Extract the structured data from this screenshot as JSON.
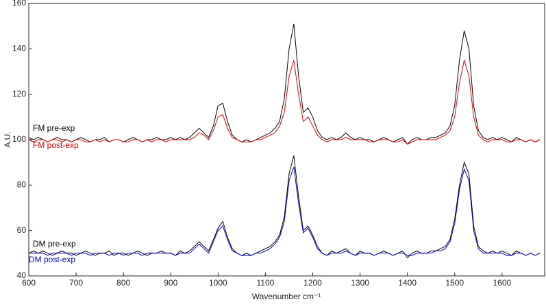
{
  "chart_data": {
    "type": "line",
    "xlabel": "Wavenumber cm⁻¹",
    "ylabel": "A.U.",
    "xlim": [
      600,
      1690
    ],
    "ylim": [
      40,
      160
    ],
    "xticks": [
      600,
      700,
      800,
      900,
      1000,
      1100,
      1200,
      1300,
      1400,
      1500,
      1600
    ],
    "yticks": [
      40,
      60,
      80,
      100,
      120,
      140,
      160
    ],
    "x": [
      600,
      610,
      620,
      630,
      640,
      650,
      660,
      670,
      680,
      690,
      700,
      710,
      720,
      730,
      740,
      750,
      760,
      770,
      780,
      790,
      800,
      810,
      820,
      830,
      840,
      850,
      860,
      870,
      880,
      890,
      900,
      910,
      920,
      930,
      940,
      950,
      960,
      970,
      980,
      990,
      1000,
      1010,
      1020,
      1030,
      1040,
      1050,
      1060,
      1070,
      1080,
      1090,
      1100,
      1110,
      1120,
      1130,
      1140,
      1150,
      1160,
      1170,
      1180,
      1190,
      1200,
      1210,
      1220,
      1230,
      1240,
      1250,
      1260,
      1270,
      1280,
      1290,
      1300,
      1310,
      1320,
      1330,
      1340,
      1350,
      1360,
      1370,
      1380,
      1390,
      1400,
      1410,
      1420,
      1430,
      1440,
      1450,
      1460,
      1470,
      1480,
      1490,
      1500,
      1510,
      1520,
      1530,
      1540,
      1550,
      1560,
      1570,
      1580,
      1590,
      1600,
      1610,
      1620,
      1630,
      1640,
      1650,
      1660,
      1670,
      1680
    ],
    "series": [
      {
        "name": "FM pre-exp",
        "color": "#000000",
        "values": [
          101,
          100,
          101,
          100,
          99,
          100,
          101,
          100,
          100,
          99,
          100,
          101,
          100,
          99,
          100,
          100,
          101,
          99,
          100,
          100,
          99,
          100,
          101,
          100,
          99,
          100,
          100,
          101,
          100,
          100,
          101,
          100,
          101,
          100,
          101,
          103,
          105,
          103,
          101,
          106,
          115,
          116,
          108,
          102,
          100,
          99,
          100,
          99,
          100,
          101,
          102,
          103,
          105,
          108,
          118,
          140,
          151,
          128,
          112,
          114,
          110,
          104,
          101,
          100,
          101,
          100,
          101,
          103,
          101,
          100,
          101,
          100,
          100,
          99,
          100,
          101,
          100,
          99,
          100,
          101,
          98,
          100,
          101,
          100,
          100,
          101,
          101,
          102,
          103,
          106,
          115,
          135,
          148,
          140,
          115,
          104,
          101,
          100,
          101,
          100,
          101,
          100,
          99,
          101,
          100,
          99,
          100,
          99,
          100
        ]
      },
      {
        "name": "FM post-exp",
        "color": "#d40000",
        "values": [
          100,
          99,
          100,
          100,
          99,
          100,
          100,
          99,
          100,
          99,
          100,
          100,
          99,
          99,
          100,
          99,
          100,
          99,
          100,
          100,
          99,
          99,
          100,
          100,
          99,
          100,
          99,
          100,
          100,
          99,
          100,
          100,
          100,
          100,
          100,
          101,
          103,
          102,
          100,
          104,
          110,
          111,
          105,
          101,
          100,
          99,
          99,
          99,
          100,
          100,
          101,
          102,
          103,
          106,
          112,
          128,
          135,
          120,
          108,
          110,
          106,
          102,
          100,
          99,
          100,
          100,
          100,
          101,
          100,
          100,
          100,
          100,
          99,
          99,
          100,
          100,
          100,
          99,
          99,
          100,
          98,
          99,
          100,
          100,
          100,
          100,
          100,
          101,
          102,
          104,
          110,
          125,
          135,
          128,
          110,
          102,
          100,
          99,
          100,
          100,
          100,
          99,
          99,
          100,
          100,
          99,
          100,
          99,
          100
        ]
      },
      {
        "name": "DM pre-exp",
        "color": "#000000",
        "values": [
          50,
          51,
          50,
          51,
          50,
          49,
          50,
          51,
          50,
          50,
          49,
          50,
          51,
          50,
          49,
          50,
          50,
          51,
          49,
          50,
          50,
          49,
          50,
          51,
          50,
          49,
          50,
          50,
          51,
          50,
          50,
          49,
          51,
          50,
          51,
          53,
          55,
          53,
          51,
          56,
          61,
          64,
          57,
          52,
          50,
          49,
          50,
          49,
          50,
          51,
          52,
          53,
          55,
          58,
          66,
          85,
          93,
          75,
          60,
          62,
          58,
          53,
          50,
          49,
          51,
          50,
          51,
          52,
          50,
          49,
          51,
          50,
          50,
          49,
          50,
          51,
          50,
          49,
          50,
          51,
          48,
          50,
          51,
          50,
          50,
          51,
          51,
          52,
          53,
          56,
          65,
          80,
          90,
          85,
          62,
          53,
          51,
          50,
          51,
          50,
          51,
          50,
          49,
          51,
          50,
          49,
          50,
          49,
          50
        ]
      },
      {
        "name": "DM post-exp",
        "color": "#0000c8",
        "values": [
          50,
          50,
          50,
          50,
          49,
          50,
          50,
          50,
          50,
          49,
          50,
          50,
          50,
          49,
          50,
          50,
          50,
          49,
          50,
          50,
          49,
          50,
          50,
          50,
          49,
          50,
          50,
          50,
          50,
          50,
          50,
          49,
          50,
          50,
          50,
          52,
          54,
          52,
          50,
          55,
          60,
          62,
          56,
          51,
          50,
          49,
          49,
          49,
          50,
          50,
          51,
          52,
          54,
          57,
          64,
          82,
          88,
          72,
          59,
          61,
          57,
          52,
          50,
          49,
          50,
          50,
          50,
          51,
          50,
          49,
          50,
          50,
          50,
          49,
          50,
          50,
          50,
          49,
          50,
          50,
          49,
          49,
          50,
          50,
          50,
          50,
          51,
          51,
          52,
          55,
          63,
          78,
          87,
          82,
          60,
          52,
          50,
          50,
          50,
          50,
          50,
          49,
          49,
          50,
          50,
          49,
          50,
          49,
          50
        ]
      }
    ]
  }
}
